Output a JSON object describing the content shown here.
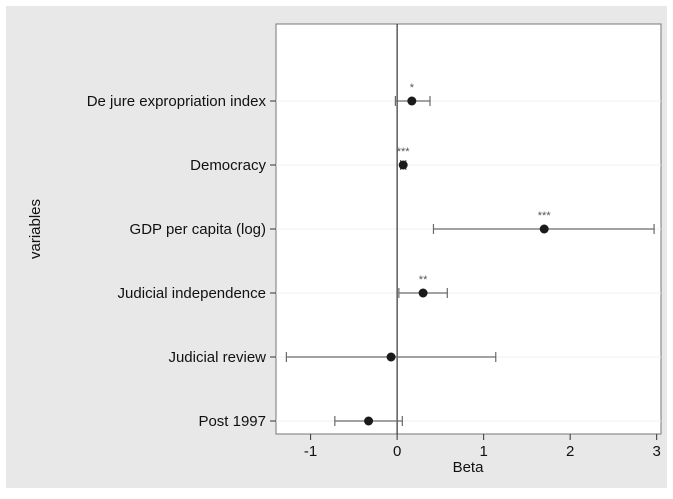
{
  "chart_data": {
    "type": "scatter",
    "subtype": "coefficient-plot",
    "title": "",
    "xlabel": "Beta",
    "ylabel": "variables",
    "xlim": [
      -1.4,
      3.05
    ],
    "xticks": [
      -1,
      0,
      1,
      2,
      3
    ],
    "grid": true,
    "legend": "none",
    "reference_line_x": 0,
    "colors": {
      "outer_background": "#e8e8e8",
      "plot_background": "#ffffff",
      "grid": "#eaf2f3",
      "marker": "#1a1a1a",
      "error_bar": "#6a6a6a",
      "reference_line": "#333333",
      "text": "#111111"
    },
    "categories": [
      "De jure expropriation index",
      "Democracy",
      "GDP per capita (log)",
      "Judicial independence",
      "Judicial review",
      "Post 1997"
    ],
    "points": [
      {
        "label": "De jure expropriation index",
        "beta": 0.17,
        "ci": [
          -0.02,
          0.38
        ],
        "sig": "*"
      },
      {
        "label": "Democracy",
        "beta": 0.07,
        "ci": [
          0.04,
          0.1
        ],
        "sig": "***"
      },
      {
        "label": "GDP per capita (log)",
        "beta": 1.7,
        "ci": [
          0.42,
          2.97
        ],
        "sig": "***"
      },
      {
        "label": "Judicial independence",
        "beta": 0.3,
        "ci": [
          0.02,
          0.58
        ],
        "sig": "**"
      },
      {
        "label": "Judicial review",
        "beta": -0.07,
        "ci": [
          -1.28,
          1.14
        ],
        "sig": ""
      },
      {
        "label": "Post 1997",
        "beta": -0.33,
        "ci": [
          -0.72,
          0.06
        ],
        "sig": ""
      }
    ]
  }
}
